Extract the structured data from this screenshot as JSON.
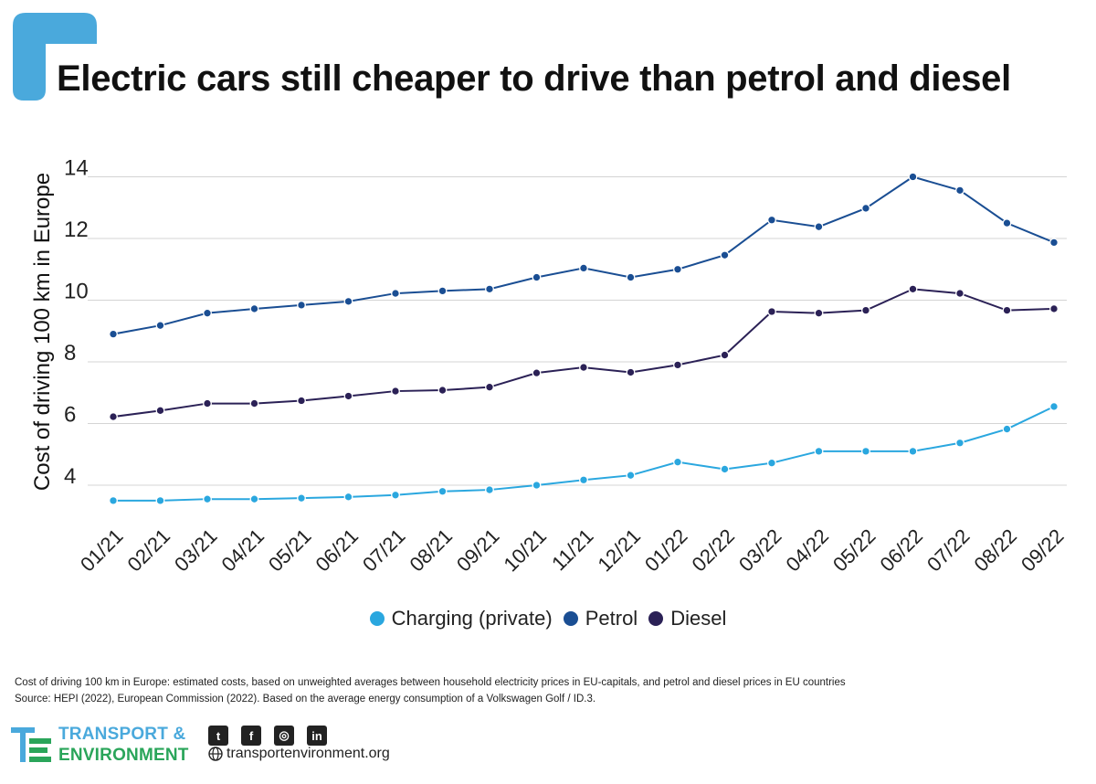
{
  "header": {
    "title": "Electric cars still cheaper to drive than petrol and diesel"
  },
  "colors": {
    "accent": "#4aa9dc",
    "charging": "#2aa7df",
    "petrol": "#1a4e93",
    "diesel": "#2b2156"
  },
  "chart_data": {
    "type": "line",
    "title": "Electric cars still cheaper to drive than petrol and diesel",
    "xlabel": "",
    "ylabel": "Cost of driving 100 km in Europe",
    "ylim": [
      3,
      14.5
    ],
    "yticks": [
      4,
      6,
      8,
      10,
      12,
      14
    ],
    "grid": true,
    "legend_position": "bottom",
    "categories": [
      "01/21",
      "02/21",
      "03/21",
      "04/21",
      "05/21",
      "06/21",
      "07/21",
      "08/21",
      "09/21",
      "10/21",
      "11/21",
      "12/21",
      "01/22",
      "02/22",
      "03/22",
      "04/22",
      "05/22",
      "06/22",
      "07/22",
      "08/22",
      "09/22"
    ],
    "series": [
      {
        "name": "Charging (private)",
        "color": "#2aa7df",
        "values": [
          3.5,
          3.5,
          3.55,
          3.55,
          3.58,
          3.62,
          3.68,
          3.8,
          3.85,
          4.0,
          4.17,
          4.32,
          4.75,
          4.52,
          4.72,
          5.1,
          5.1,
          5.1,
          5.37,
          5.82,
          6.55
        ]
      },
      {
        "name": "Petrol",
        "color": "#1a4e93",
        "values": [
          8.9,
          9.18,
          9.58,
          9.72,
          9.84,
          9.96,
          10.22,
          10.3,
          10.36,
          10.74,
          11.04,
          10.74,
          11.0,
          11.46,
          12.6,
          12.38,
          12.98,
          14.0,
          13.56,
          12.5,
          11.87
        ]
      },
      {
        "name": "Diesel",
        "color": "#2b2156",
        "values": [
          6.22,
          6.42,
          6.65,
          6.65,
          6.74,
          6.89,
          7.05,
          7.08,
          7.18,
          7.64,
          7.82,
          7.66,
          7.9,
          8.22,
          9.63,
          9.58,
          9.67,
          10.36,
          10.22,
          9.67,
          9.72
        ]
      }
    ]
  },
  "notes": {
    "line1": "Cost of driving 100 km in Europe: estimated costs, based on unweighted averages between household electricity prices in EU-capitals, and petrol and diesel prices in EU countries",
    "line2": "Source: HEPI (2022), European Commission (2022). Based on the average energy consumption of a Volkswagen Golf / ID.3."
  },
  "footer": {
    "brand_line1": "TRANSPORT &",
    "brand_line2": "ENVIRONMENT",
    "website": "transportenvironment.org",
    "social_icons": [
      "twitter-icon",
      "facebook-icon",
      "instagram-icon",
      "linkedin-icon"
    ],
    "social_glyphs": [
      "t",
      "f",
      "◎",
      "in"
    ]
  }
}
